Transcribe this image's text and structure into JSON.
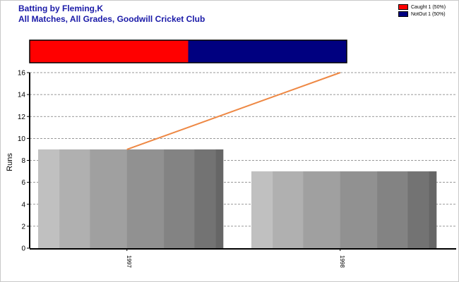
{
  "header": {
    "title": "Batting by Fleming,K",
    "subtitle": "All Matches, All Grades, Goodwill Cricket Club"
  },
  "legend": {
    "items": [
      {
        "label": "Caught 1 (50%)",
        "color": "#ff0000"
      },
      {
        "label": "NotOut 1 (50%)",
        "color": "#000080"
      }
    ]
  },
  "chart_data": {
    "type": "bar",
    "title": "Batting by Fleming,K",
    "subtitle": "All Matches, All Grades, Goodwill Cricket Club",
    "xlabel": "",
    "ylabel": "Runs",
    "ylim": [
      0,
      16
    ],
    "yticks": [
      0,
      2,
      4,
      6,
      8,
      10,
      12,
      14,
      16
    ],
    "grid": true,
    "legend_position": "top-right",
    "categories": [
      "1997",
      "1998"
    ],
    "series": [
      {
        "values": [
          9,
          7
        ],
        "style": "bar",
        "color": "#999999"
      },
      {
        "values": [
          9,
          16
        ],
        "style": "line",
        "color": "#ee8844"
      }
    ],
    "dismissal_breakdown": [
      {
        "label": "Caught 1 (50%)",
        "fraction": 0.5,
        "color": "#ff0000"
      },
      {
        "label": "NotOut 1 (50%)",
        "fraction": 0.5,
        "color": "#000080"
      }
    ]
  }
}
